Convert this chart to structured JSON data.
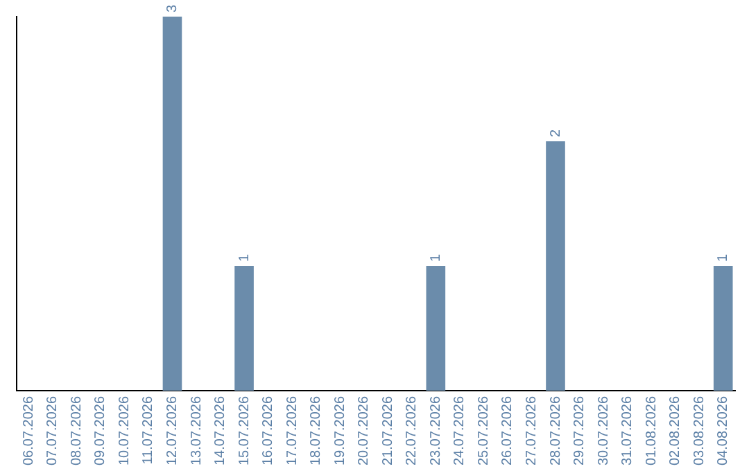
{
  "chart_data": {
    "type": "bar",
    "categories": [
      "06.07.2026",
      "07.07.2026",
      "08.07.2026",
      "09.07.2026",
      "10.07.2026",
      "11.07.2026",
      "12.07.2026",
      "13.07.2026",
      "14.07.2026",
      "15.07.2026",
      "16.07.2026",
      "17.07.2026",
      "18.07.2026",
      "19.07.2026",
      "20.07.2026",
      "21.07.2026",
      "22.07.2026",
      "23.07.2026",
      "24.07.2026",
      "25.07.2026",
      "26.07.2026",
      "27.07.2026",
      "28.07.2026",
      "29.07.2026",
      "30.07.2026",
      "31.07.2026",
      "01.08.2026",
      "02.08.2026",
      "03.08.2026",
      "04.08.2026"
    ],
    "values": [
      null,
      null,
      null,
      null,
      null,
      null,
      3,
      null,
      null,
      1,
      null,
      null,
      null,
      null,
      null,
      null,
      null,
      1,
      null,
      null,
      null,
      null,
      2,
      null,
      null,
      null,
      null,
      null,
      null,
      1
    ],
    "color": "#6b8cab",
    "data_labels": true,
    "grid": false,
    "legend": false
  }
}
